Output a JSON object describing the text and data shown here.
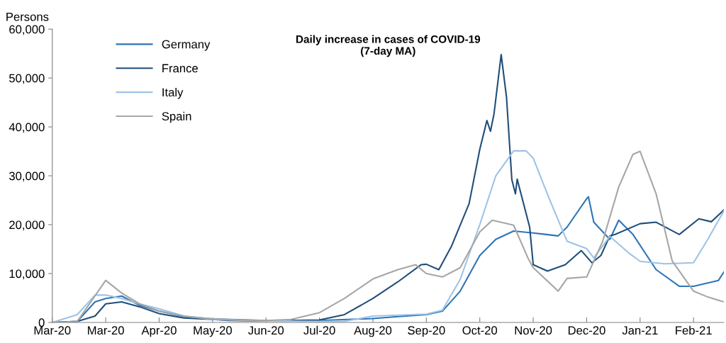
{
  "chart_data": {
    "type": "line",
    "title": "Daily increase in cases of COVID-19\n(7-day MA)",
    "ylabel": "Persons",
    "xlim": [
      "2020-03-01",
      "2021-03-13"
    ],
    "ylim": [
      0,
      60000
    ],
    "yticks": [
      {
        "value": 0,
        "label": "0"
      },
      {
        "value": 10000,
        "label": "10,000"
      },
      {
        "value": 20000,
        "label": "20,000"
      },
      {
        "value": 30000,
        "label": "30,000"
      },
      {
        "value": 40000,
        "label": "40,000"
      },
      {
        "value": 50000,
        "label": "50,000"
      },
      {
        "value": 60000,
        "label": "60,000"
      }
    ],
    "xticks": [
      {
        "value": "2020-03-01",
        "label": "Mar-20"
      },
      {
        "value": "2020-03-31",
        "label": "Mar-20"
      },
      {
        "value": "2020-04-30",
        "label": "Apr-20"
      },
      {
        "value": "2020-05-30",
        "label": "May-20"
      },
      {
        "value": "2020-06-29",
        "label": "Jun-20"
      },
      {
        "value": "2020-07-29",
        "label": "Jul-20"
      },
      {
        "value": "2020-08-28",
        "label": "Aug-20"
      },
      {
        "value": "2020-09-27",
        "label": "Sep-20"
      },
      {
        "value": "2020-10-27",
        "label": "Oct-20"
      },
      {
        "value": "2020-11-26",
        "label": "Nov-20"
      },
      {
        "value": "2020-12-26",
        "label": "Dec-20"
      },
      {
        "value": "2021-01-25",
        "label": "Jan-21"
      },
      {
        "value": "2021-02-24",
        "label": "Feb-21"
      }
    ],
    "grid": false,
    "legend": "top left",
    "line_style": "solid",
    "marker": "none",
    "series": [
      {
        "name": "Germany",
        "color": "#2e75b6",
        "x": [
          "2020-03-01",
          "2020-03-15",
          "2020-03-25",
          "2020-03-31",
          "2020-04-09",
          "2020-04-19",
          "2020-04-30",
          "2020-05-14",
          "2020-05-30",
          "2020-06-29",
          "2020-07-29",
          "2020-08-28",
          "2020-09-11",
          "2020-09-27",
          "2020-10-06",
          "2020-10-16",
          "2020-10-27",
          "2020-11-05",
          "2020-11-15",
          "2020-11-26",
          "2020-12-10",
          "2020-12-15",
          "2020-12-26",
          "2020-12-27",
          "2020-12-30",
          "2021-01-08",
          "2021-01-13",
          "2021-01-21",
          "2021-02-03",
          "2021-02-16",
          "2021-02-24",
          "2021-03-10",
          "2021-03-13"
        ],
        "values": [
          0,
          200,
          4200,
          4900,
          5400,
          3500,
          2300,
          1200,
          700,
          400,
          400,
          800,
          1200,
          1600,
          2300,
          6400,
          13700,
          17000,
          18700,
          18300,
          17700,
          19500,
          25300,
          25700,
          20500,
          17000,
          20900,
          18000,
          10800,
          7400,
          7400,
          8600,
          10300
        ]
      },
      {
        "name": "France",
        "color": "#1f4e79",
        "x": [
          "2020-03-01",
          "2020-03-15",
          "2020-03-25",
          "2020-03-31",
          "2020-04-09",
          "2020-04-19",
          "2020-04-30",
          "2020-05-14",
          "2020-05-30",
          "2020-06-08",
          "2020-06-29",
          "2020-07-29",
          "2020-08-12",
          "2020-08-28",
          "2020-09-11",
          "2020-09-24",
          "2020-09-27",
          "2020-10-04",
          "2020-10-11",
          "2020-10-21",
          "2020-10-27",
          "2020-10-31",
          "2020-11-02",
          "2020-11-04",
          "2020-11-08",
          "2020-11-11",
          "2020-11-14",
          "2020-11-16",
          "2020-11-17",
          "2020-11-24",
          "2020-11-26",
          "2020-12-04",
          "2020-12-14",
          "2020-12-23",
          "2020-12-29",
          "2021-01-03",
          "2021-01-08",
          "2021-01-11",
          "2021-01-25",
          "2021-02-03",
          "2021-02-16",
          "2021-02-27",
          "2021-03-06",
          "2021-03-13"
        ],
        "values": [
          0,
          200,
          1300,
          3800,
          4200,
          3200,
          1800,
          900,
          600,
          400,
          300,
          500,
          1600,
          4900,
          8300,
          11800,
          11900,
          10800,
          15500,
          24300,
          35400,
          41300,
          39100,
          42700,
          54800,
          46100,
          29200,
          26300,
          29300,
          19500,
          11800,
          10500,
          11800,
          14700,
          12200,
          13700,
          17700,
          18000,
          20200,
          20500,
          18000,
          21200,
          20600,
          23000
        ]
      },
      {
        "name": "Italy",
        "color": "#9dc3e6",
        "x": [
          "2020-03-01",
          "2020-03-15",
          "2020-03-25",
          "2020-03-31",
          "2020-04-09",
          "2020-04-19",
          "2020-04-30",
          "2020-05-14",
          "2020-05-30",
          "2020-06-29",
          "2020-07-29",
          "2020-08-12",
          "2020-08-28",
          "2020-09-27",
          "2020-10-06",
          "2020-10-16",
          "2020-10-27",
          "2020-11-05",
          "2020-11-15",
          "2020-11-22",
          "2020-11-26",
          "2020-12-05",
          "2020-12-15",
          "2020-12-26",
          "2020-12-30",
          "2021-01-08",
          "2021-01-19",
          "2021-01-25",
          "2021-02-08",
          "2021-02-24",
          "2021-03-04",
          "2021-03-13"
        ],
        "values": [
          0,
          1600,
          5600,
          5600,
          4900,
          3800,
          2800,
          1300,
          600,
          300,
          200,
          200,
          1300,
          1700,
          2500,
          8800,
          20000,
          30000,
          35100,
          35100,
          33600,
          25300,
          16600,
          15100,
          13200,
          17600,
          14100,
          12500,
          12000,
          12200,
          17000,
          22800
        ]
      },
      {
        "name": "Spain",
        "color": "#a6a6a6",
        "x": [
          "2020-03-01",
          "2020-03-15",
          "2020-03-31",
          "2020-04-09",
          "2020-04-19",
          "2020-04-30",
          "2020-05-14",
          "2020-05-30",
          "2020-06-13",
          "2020-06-29",
          "2020-07-13",
          "2020-07-29",
          "2020-08-12",
          "2020-08-28",
          "2020-09-11",
          "2020-09-21",
          "2020-09-27",
          "2020-10-06",
          "2020-10-16",
          "2020-10-27",
          "2020-11-03",
          "2020-11-15",
          "2020-11-23",
          "2020-11-26",
          "2020-12-10",
          "2020-12-15",
          "2020-12-26",
          "2021-01-04",
          "2021-01-13",
          "2021-01-21",
          "2021-01-25",
          "2021-02-03",
          "2021-02-12",
          "2021-02-24",
          "2021-03-04",
          "2021-03-13"
        ],
        "values": [
          0,
          200,
          8600,
          6000,
          3800,
          2300,
          1300,
          700,
          500,
          400,
          600,
          2000,
          4900,
          8900,
          10800,
          11800,
          10000,
          9300,
          11200,
          18500,
          20900,
          19900,
          13200,
          11200,
          6400,
          9000,
          9300,
          16600,
          27700,
          34400,
          35000,
          26300,
          12600,
          6400,
          5200,
          4200
        ]
      }
    ]
  }
}
